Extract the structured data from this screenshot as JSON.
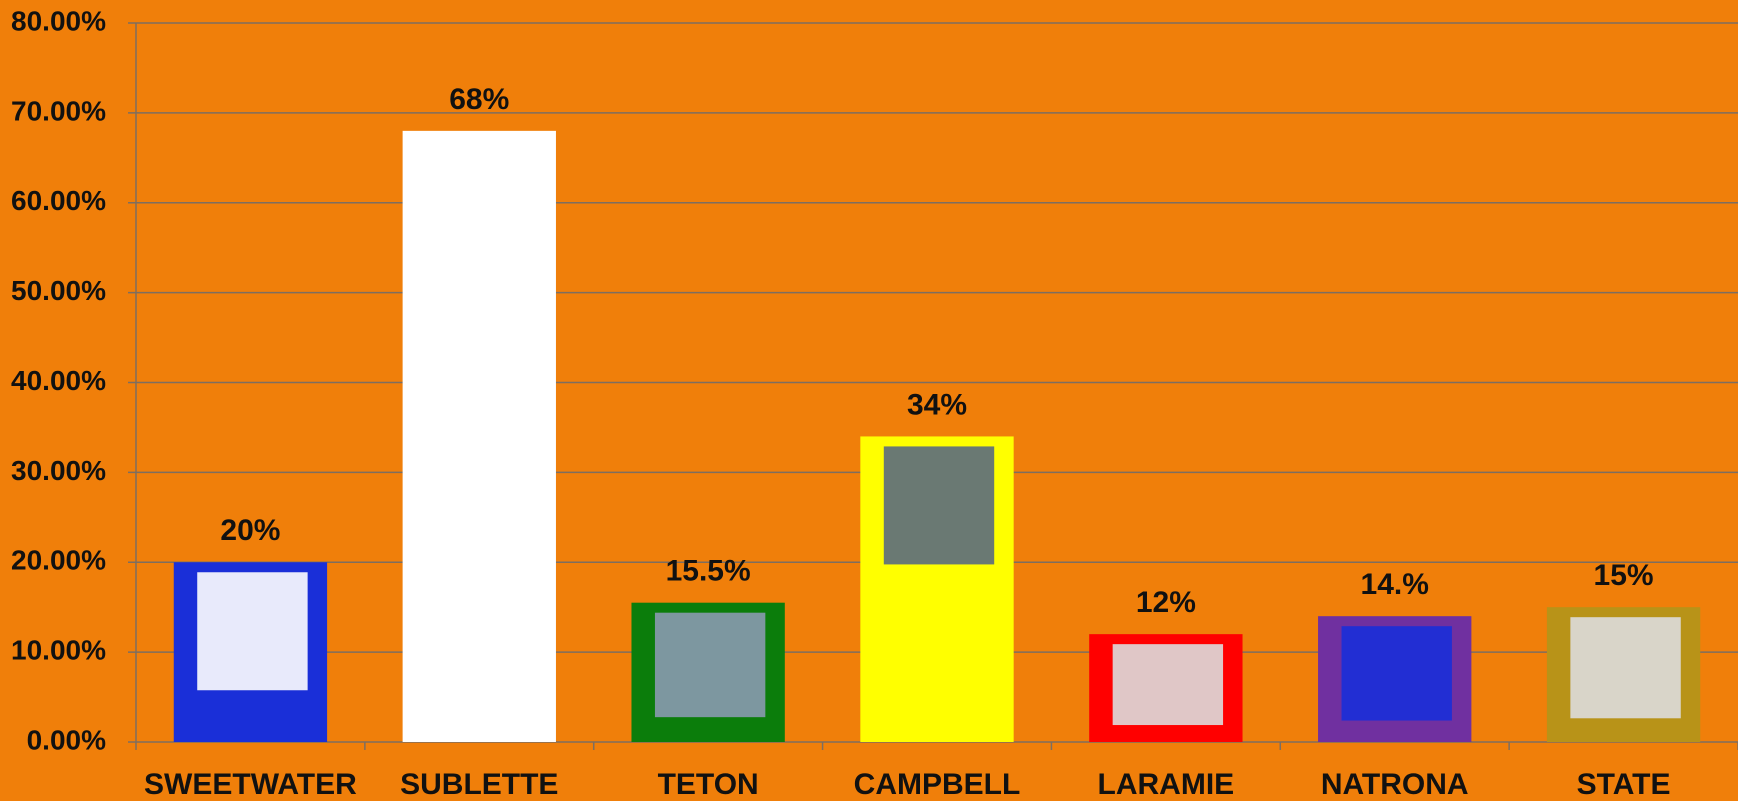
{
  "chart_data": {
    "type": "bar",
    "categories": [
      "SWEETWATER",
      "SUBLETTE",
      "TETON",
      "CAMPBELL",
      "LARAMIE",
      "NATRONA",
      "STATE"
    ],
    "values": [
      20,
      68,
      15.5,
      34,
      12,
      14,
      15
    ],
    "value_labels": [
      "20%",
      "68%",
      "15.5%",
      "34%",
      "12%",
      "14.%",
      "15%"
    ],
    "colors": [
      "#1a2fd8",
      "#ffffff",
      "#0b7d0b",
      "#ffff00",
      "#ff0000",
      "#7030a0",
      "#b89318"
    ],
    "ylim": [
      0,
      80
    ],
    "yticks": [
      {
        "value": 0,
        "label": "0.00%"
      },
      {
        "value": 10,
        "label": "10.00%"
      },
      {
        "value": 20,
        "label": "20.00%"
      },
      {
        "value": 30,
        "label": "30.00%"
      },
      {
        "value": 40,
        "label": "40.00%"
      },
      {
        "value": 50,
        "label": "50.00%"
      },
      {
        "value": 60,
        "label": "60.00%"
      },
      {
        "value": 70,
        "label": "70.00%"
      },
      {
        "value": 80,
        "label": "80.00%"
      }
    ],
    "grid": true
  }
}
